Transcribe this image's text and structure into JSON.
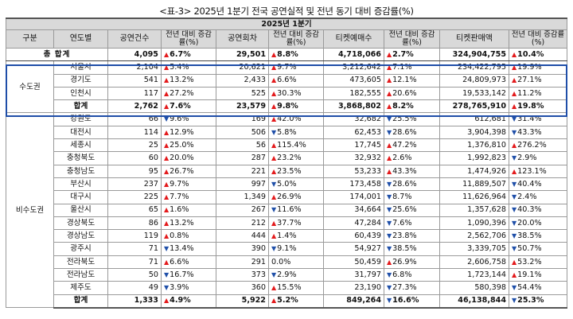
{
  "title": "<표-3> 2025년 1분기 전국 공연실적 및 전년 동기 대비 증감률(%)",
  "header": {
    "period": "2025년 1분기",
    "group": "구분",
    "region": "연도별",
    "shows": "공연건수",
    "shows_chg": "전년 대비 증감률(%)",
    "perf": "공연회차",
    "perf_chg": "전년 대비 증감률(%)",
    "tickets": "티켓예매수",
    "tickets_chg": "전년 대비 증감률(%)",
    "sales": "티켓판매액",
    "sales_chg": "전년 대비 증감률(%)"
  },
  "total": {
    "label": "총 합계",
    "shows": "4,095",
    "shows_chg": "6.7%",
    "shows_dir": "up",
    "perf": "29,501",
    "perf_chg": "8.8%",
    "perf_dir": "up",
    "tickets": "4,718,066",
    "tickets_chg": "2.7%",
    "tickets_dir": "up",
    "sales": "324,904,755",
    "sales_chg": "10.4%",
    "sales_dir": "up"
  },
  "capital": {
    "label": "수도권",
    "rows": [
      {
        "region": "서울시",
        "shows": "2,104",
        "shows_chg": "5.4%",
        "shows_dir": "up",
        "perf": "20,621",
        "perf_chg": "9.7%",
        "perf_dir": "up",
        "tickets": "3,212,642",
        "tickets_chg": "7.1%",
        "tickets_dir": "up",
        "sales": "234,422,795",
        "sales_chg": "19.9%",
        "sales_dir": "up"
      },
      {
        "region": "경기도",
        "shows": "541",
        "shows_chg": "13.2%",
        "shows_dir": "up",
        "perf": "2,433",
        "perf_chg": "6.6%",
        "perf_dir": "up",
        "tickets": "473,605",
        "tickets_chg": "12.1%",
        "tickets_dir": "up",
        "sales": "24,809,973",
        "sales_chg": "27.1%",
        "sales_dir": "up"
      },
      {
        "region": "인천시",
        "shows": "117",
        "shows_chg": "27.2%",
        "shows_dir": "up",
        "perf": "525",
        "perf_chg": "30.3%",
        "perf_dir": "up",
        "tickets": "182,555",
        "tickets_chg": "20.6%",
        "tickets_dir": "up",
        "sales": "19,533,142",
        "sales_chg": "11.2%",
        "sales_dir": "up"
      }
    ],
    "subtotal": {
      "region": "합계",
      "shows": "2,762",
      "shows_chg": "7.6%",
      "shows_dir": "up",
      "perf": "23,579",
      "perf_chg": "9.8%",
      "perf_dir": "up",
      "tickets": "3,868,802",
      "tickets_chg": "8.2%",
      "tickets_dir": "up",
      "sales": "278,765,910",
      "sales_chg": "19.8%",
      "sales_dir": "up"
    }
  },
  "noncapital": {
    "label": "비수도권",
    "rows": [
      {
        "region": "강원도",
        "shows": "66",
        "shows_chg": "9.6%",
        "shows_dir": "down",
        "perf": "169",
        "perf_chg": "42.0%",
        "perf_dir": "up",
        "tickets": "32,682",
        "tickets_chg": "25.5%",
        "tickets_dir": "down",
        "sales": "612,681",
        "sales_chg": "31.4%",
        "sales_dir": "down"
      },
      {
        "region": "대전시",
        "shows": "114",
        "shows_chg": "12.9%",
        "shows_dir": "up",
        "perf": "506",
        "perf_chg": "5.8%",
        "perf_dir": "down",
        "tickets": "62,453",
        "tickets_chg": "28.6%",
        "tickets_dir": "down",
        "sales": "3,904,398",
        "sales_chg": "43.3%",
        "sales_dir": "down"
      },
      {
        "region": "세종시",
        "shows": "25",
        "shows_chg": "25.0%",
        "shows_dir": "up",
        "perf": "56",
        "perf_chg": "115.4%",
        "perf_dir": "up",
        "tickets": "17,745",
        "tickets_chg": "47.2%",
        "tickets_dir": "up",
        "sales": "1,376,810",
        "sales_chg": "276.2%",
        "sales_dir": "up"
      },
      {
        "region": "충청북도",
        "shows": "60",
        "shows_chg": "20.0%",
        "shows_dir": "up",
        "perf": "287",
        "perf_chg": "23.2%",
        "perf_dir": "up",
        "tickets": "32,932",
        "tickets_chg": "2.6%",
        "tickets_dir": "up",
        "sales": "1,992,823",
        "sales_chg": "2.9%",
        "sales_dir": "down"
      },
      {
        "region": "충청남도",
        "shows": "95",
        "shows_chg": "26.7%",
        "shows_dir": "up",
        "perf": "221",
        "perf_chg": "23.5%",
        "perf_dir": "up",
        "tickets": "53,233",
        "tickets_chg": "43.3%",
        "tickets_dir": "up",
        "sales": "1,474,926",
        "sales_chg": "123.1%",
        "sales_dir": "up"
      },
      {
        "region": "부산시",
        "shows": "237",
        "shows_chg": "9.7%",
        "shows_dir": "up",
        "perf": "997",
        "perf_chg": "5.0%",
        "perf_dir": "down",
        "tickets": "173,458",
        "tickets_chg": "28.6%",
        "tickets_dir": "down",
        "sales": "11,889,507",
        "sales_chg": "40.4%",
        "sales_dir": "down"
      },
      {
        "region": "대구시",
        "shows": "225",
        "shows_chg": "7.7%",
        "shows_dir": "up",
        "perf": "1,349",
        "perf_chg": "26.9%",
        "perf_dir": "up",
        "tickets": "174,001",
        "tickets_chg": "8.7%",
        "tickets_dir": "down",
        "sales": "11,626,964",
        "sales_chg": "2.4%",
        "sales_dir": "down"
      },
      {
        "region": "울산시",
        "shows": "65",
        "shows_chg": "1.6%",
        "shows_dir": "up",
        "perf": "267",
        "perf_chg": "11.6%",
        "perf_dir": "down",
        "tickets": "34,664",
        "tickets_chg": "25.6%",
        "tickets_dir": "down",
        "sales": "1,357,628",
        "sales_chg": "40.3%",
        "sales_dir": "down"
      },
      {
        "region": "경상북도",
        "shows": "86",
        "shows_chg": "13.2%",
        "shows_dir": "up",
        "perf": "212",
        "perf_chg": "37.7%",
        "perf_dir": "up",
        "tickets": "47,284",
        "tickets_chg": "7.6%",
        "tickets_dir": "down",
        "sales": "1,090,396",
        "sales_chg": "20.0%",
        "sales_dir": "down"
      },
      {
        "region": "경상남도",
        "shows": "119",
        "shows_chg": "0.8%",
        "shows_dir": "up",
        "perf": "444",
        "perf_chg": "1.4%",
        "perf_dir": "up",
        "tickets": "60,439",
        "tickets_chg": "23.8%",
        "tickets_dir": "down",
        "sales": "2,562,706",
        "sales_chg": "38.5%",
        "sales_dir": "down"
      },
      {
        "region": "광주시",
        "shows": "71",
        "shows_chg": "13.4%",
        "shows_dir": "down",
        "perf": "390",
        "perf_chg": "9.1%",
        "perf_dir": "down",
        "tickets": "54,927",
        "tickets_chg": "38.5%",
        "tickets_dir": "down",
        "sales": "3,339,705",
        "sales_chg": "50.7%",
        "sales_dir": "down"
      },
      {
        "region": "전라북도",
        "shows": "71",
        "shows_chg": "6.6%",
        "shows_dir": "up",
        "perf": "291",
        "perf_chg": "0.0%",
        "perf_dir": "none",
        "tickets": "50,459",
        "tickets_chg": "26.9%",
        "tickets_dir": "up",
        "sales": "2,606,758",
        "sales_chg": "53.2%",
        "sales_dir": "up"
      },
      {
        "region": "전라남도",
        "shows": "50",
        "shows_chg": "16.7%",
        "shows_dir": "down",
        "perf": "373",
        "perf_chg": "2.9%",
        "perf_dir": "down",
        "tickets": "31,797",
        "tickets_chg": "6.8%",
        "tickets_dir": "down",
        "sales": "1,723,144",
        "sales_chg": "19.1%",
        "sales_dir": "up"
      },
      {
        "region": "제주도",
        "shows": "49",
        "shows_chg": "3.9%",
        "shows_dir": "down",
        "perf": "360",
        "perf_chg": "15.5%",
        "perf_dir": "up",
        "tickets": "23,190",
        "tickets_chg": "27.3%",
        "tickets_dir": "down",
        "sales": "580,398",
        "sales_chg": "54.4%",
        "sales_dir": "down"
      }
    ],
    "subtotal": {
      "region": "합계",
      "shows": "1,333",
      "shows_chg": "4.9%",
      "shows_dir": "up",
      "perf": "5,922",
      "perf_chg": "5.2%",
      "perf_dir": "up",
      "tickets": "849,264",
      "tickets_chg": "16.6%",
      "tickets_dir": "down",
      "sales": "46,138,844",
      "sales_chg": "25.3%",
      "sales_dir": "down"
    }
  },
  "arrows": {
    "up": "▲",
    "down": "▼"
  },
  "colors": {
    "up": "#e31a1c",
    "down": "#1f4fa8",
    "header_bg": "#d9d9d9",
    "capital_box": "#1f4ea8"
  }
}
